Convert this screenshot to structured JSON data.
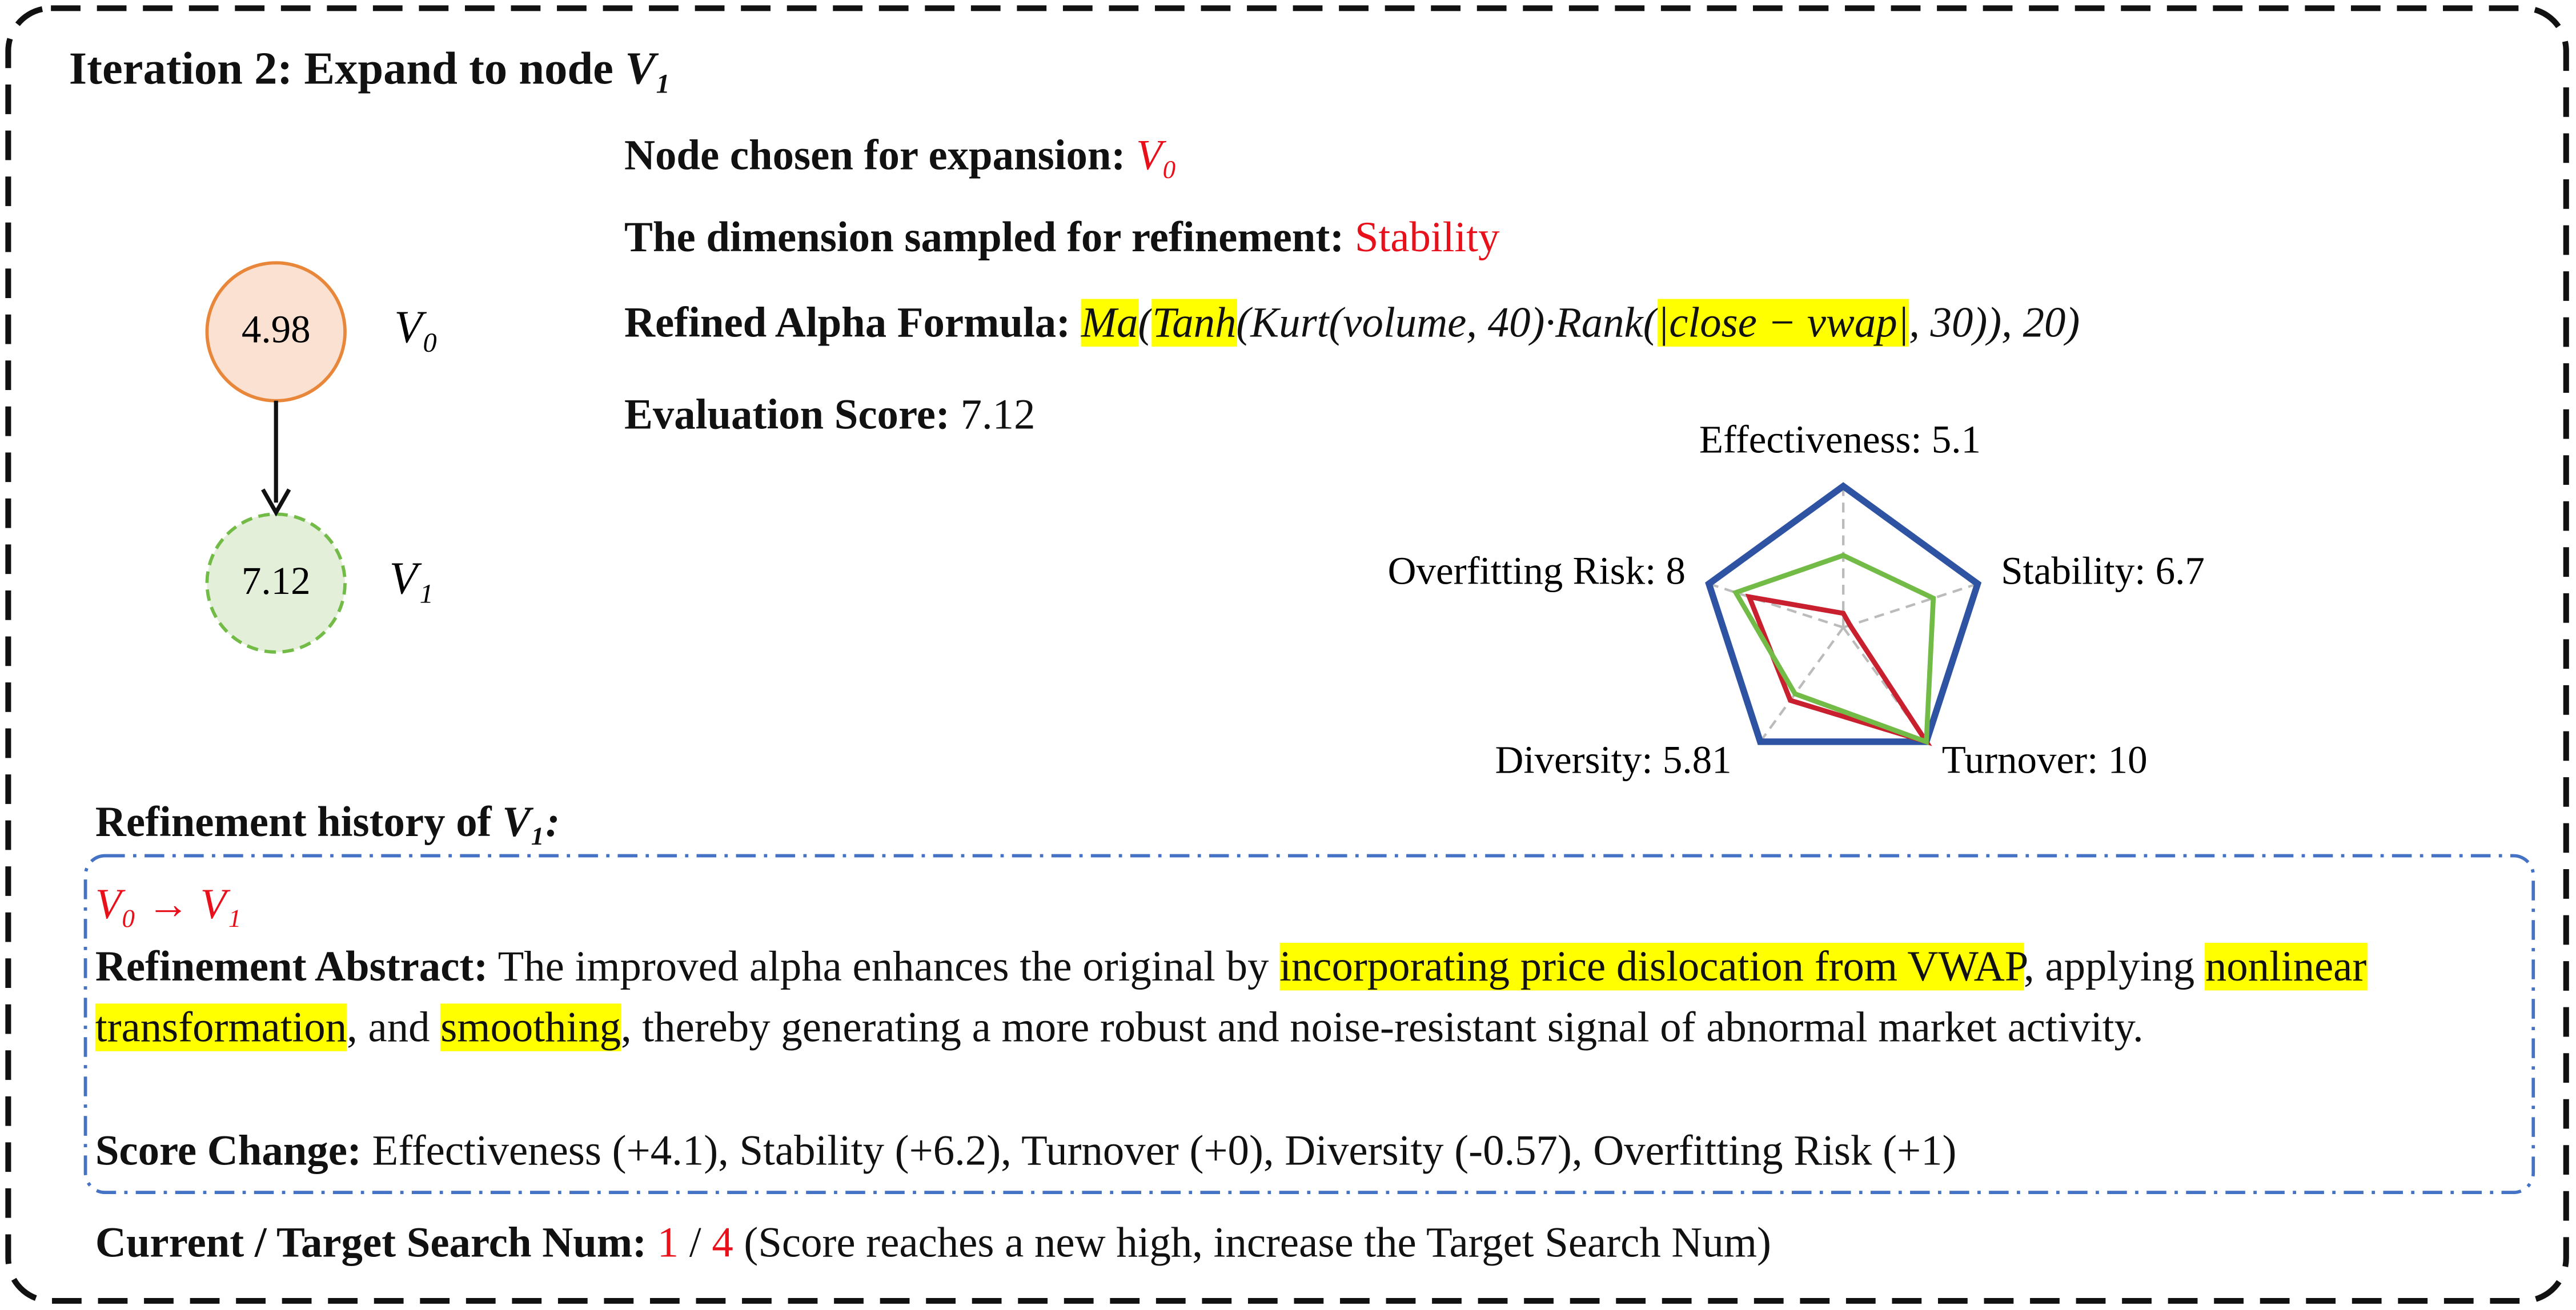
{
  "header": {
    "title": "Iteration 2: Expand to node",
    "title_node": "V₁"
  },
  "nodes": [
    {
      "label": "V₀",
      "score": 4.98
    },
    {
      "label": "V₁",
      "score": 7.12
    }
  ],
  "info": {
    "chosen_label": "Node chosen for expansion:",
    "chosen_value": "V₀",
    "dimension_label": "The dimension sampled for refinement:",
    "dimension_value": "Stability",
    "formula_label": "Refined Alpha Formula:",
    "formula_parts": [
      {
        "text": "Ma",
        "highlight": true
      },
      {
        "text": "(",
        "highlight": false
      },
      {
        "text": "Tanh",
        "highlight": true
      },
      {
        "text": "(Kurt(volume, 40)·Rank(",
        "highlight": false
      },
      {
        "text": "|close − vwap|",
        "highlight": true
      },
      {
        "text": ", 30)), 20)",
        "highlight": false
      }
    ],
    "score_label": "Evaluation Score:",
    "score_value": 7.12
  },
  "chart_data": {
    "type": "radar",
    "categories": [
      "Effectiveness:",
      "Stability:",
      "Turnover:",
      "Diversity:",
      "Overfitting Risk:"
    ],
    "ylim": [
      0,
      10
    ],
    "series": [
      {
        "color": "#2f53a3",
        "values": [
          10,
          10,
          10,
          10,
          10
        ]
      },
      {
        "color": "#c8202f",
        "values": [
          1.0,
          0.5,
          10,
          6.38,
          7
        ]
      },
      {
        "color": "#72bb46",
        "values": [
          5.1,
          6.7,
          10,
          5.81,
          8
        ]
      }
    ],
    "label_series": 2
  },
  "history": {
    "title": "Refinement history of",
    "title_node": "V₁:",
    "step": "V₀ → V₁",
    "abstract_label": "Refinement Abstract:",
    "abstract_parts": [
      {
        "text": "The improved alpha enhances the original by ",
        "highlight": false
      },
      {
        "text": "incorporating price dislocation from VWAP",
        "highlight": true
      },
      {
        "text": ", applying ",
        "highlight": false
      },
      {
        "text": "nonlinear transformation",
        "highlight": true
      },
      {
        "text": ", and ",
        "highlight": false
      },
      {
        "text": "smoothing",
        "highlight": true
      },
      {
        "text": ", thereby generating a more robust and noise-resistant signal of abnormal market activity.",
        "highlight": false
      }
    ],
    "change_label": "Score Change:",
    "change_text": "Effectiveness (+4.1), Stability (+6.2), Turnover (+0), Diversity (-0.57), Overfitting Risk (+1)"
  },
  "footer": {
    "label": "Current / Target Search Num:",
    "current": 1,
    "separator": "/",
    "target": 4,
    "note": "(Score reaches a new high, increase the Target Search Num)"
  }
}
